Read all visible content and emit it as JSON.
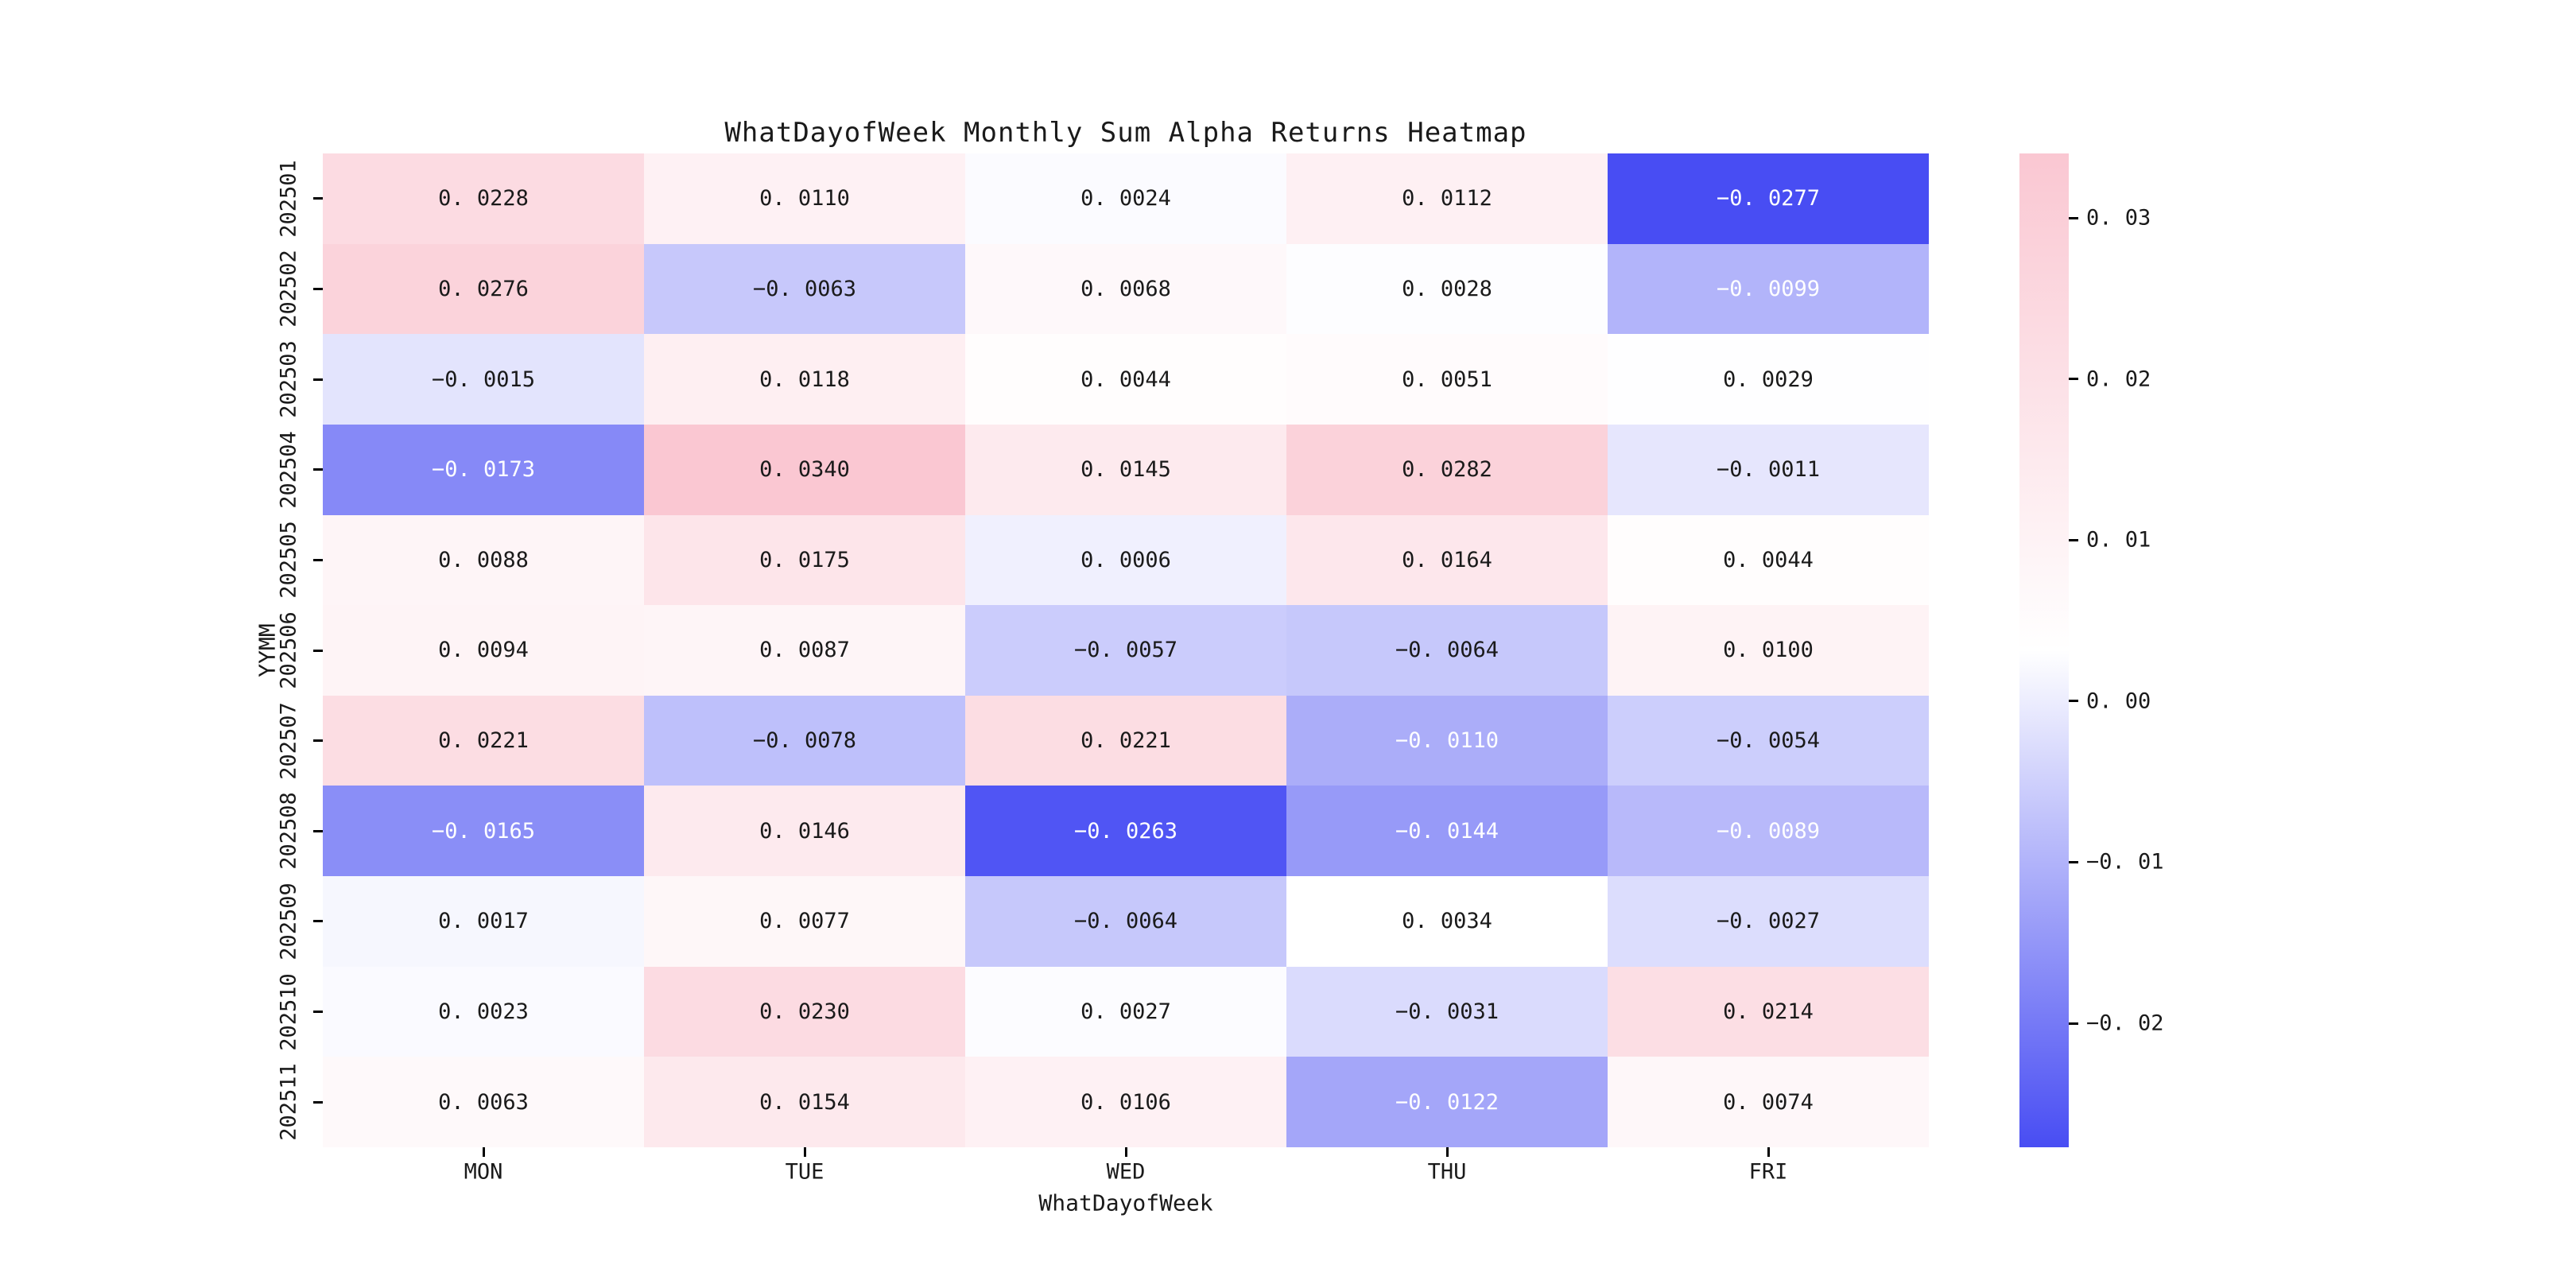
{
  "figure": {
    "background": "#ffffff"
  },
  "chart_data": {
    "type": "heatmap",
    "title": "WhatDayofWeek Monthly Sum Alpha Returns Heatmap",
    "xlabel": "WhatDayofWeek",
    "ylabel": "YYMM",
    "columns": [
      "MON",
      "TUE",
      "WED",
      "THU",
      "FRI"
    ],
    "rows": [
      "202501",
      "202502",
      "202503",
      "202504",
      "202505",
      "202506",
      "202507",
      "202508",
      "202509",
      "202510",
      "202511"
    ],
    "values": [
      [
        0.0228,
        0.011,
        0.0024,
        0.0112,
        -0.0277
      ],
      [
        0.0276,
        -0.0063,
        0.0068,
        0.0028,
        -0.0099
      ],
      [
        -0.0015,
        0.0118,
        0.0044,
        0.0051,
        0.0029
      ],
      [
        -0.0173,
        0.034,
        0.0145,
        0.0282,
        -0.0011
      ],
      [
        0.0088,
        0.0175,
        0.0006,
        0.0164,
        0.0044
      ],
      [
        0.0094,
        0.0087,
        -0.0057,
        -0.0064,
        0.01
      ],
      [
        0.0221,
        -0.0078,
        0.0221,
        -0.011,
        -0.0054
      ],
      [
        -0.0165,
        0.0146,
        -0.0263,
        -0.0144,
        -0.0089
      ],
      [
        0.0017,
        0.0077,
        -0.0064,
        0.0034,
        -0.0027
      ],
      [
        0.0023,
        0.023,
        0.0027,
        -0.0031,
        0.0214
      ],
      [
        0.0063,
        0.0154,
        0.0106,
        -0.0122,
        0.0074
      ]
    ],
    "value_decimals": 4,
    "colormap": {
      "vmin": -0.0277,
      "vmax": 0.034,
      "min_color": "#484df3",
      "mid_color": "#ffffff",
      "max_color": "#fac7d2"
    },
    "annotation": {
      "dark_text_color": "#1a1a1a",
      "light_text_color": "#ffffff",
      "light_text_below": -0.0085
    },
    "colorbar": {
      "position": "right",
      "tick_values": [
        0.03,
        0.02,
        0.01,
        0.0,
        -0.01,
        -0.02
      ],
      "tick_decimals": 2
    },
    "grid": false,
    "legend": null
  }
}
